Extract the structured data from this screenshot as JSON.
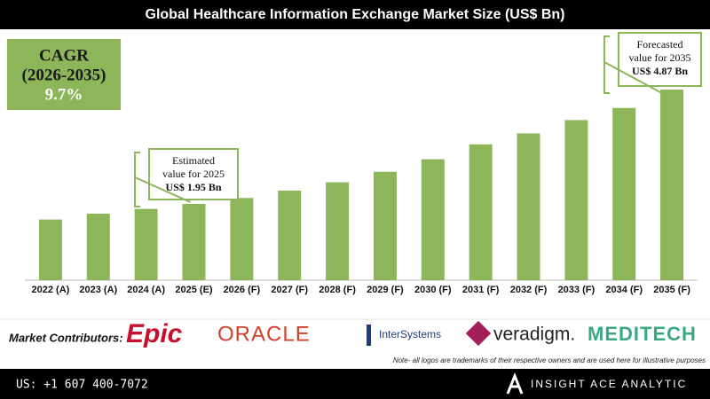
{
  "chart_data": {
    "type": "bar",
    "title": "Global Healthcare Information Exchange Market Size (US$ Bn)",
    "categories": [
      "2022 (A)",
      "2023 (A)",
      "2024 (A)",
      "2025 (E)",
      "2026 (F)",
      "2027 (F)",
      "2028 (F)",
      "2029 (F)",
      "2030 (F)",
      "2031 (F)",
      "2032 (F)",
      "2033 (F)",
      "2034 (F)",
      "2035 (F)"
    ],
    "values": [
      1.55,
      1.7,
      1.82,
      1.95,
      2.1,
      2.29,
      2.5,
      2.77,
      3.09,
      3.47,
      3.75,
      4.09,
      4.4,
      4.87
    ],
    "color": "#8db55a",
    "cagr_box": {
      "lines": [
        "CAGR",
        "(2026-2035)",
        "9.7%"
      ]
    },
    "annotations": [
      {
        "lines": [
          "Estimated",
          "value for 2025",
          "US$ 1.95 Bn"
        ]
      },
      {
        "lines": [
          "Forecasted",
          "value for 2035",
          "US$ 4.87 Bn"
        ]
      }
    ]
  },
  "footer": {
    "contributors_label": "Market Contributors:",
    "logos": [
      {
        "text": "Epic",
        "color": "#c8102e"
      },
      {
        "text": "ORACLE",
        "color": "#d0402a"
      },
      {
        "text": "InterSystems",
        "color": "#1a3d7c"
      },
      {
        "text": "veradigm.",
        "color": "#222222"
      },
      {
        "text": "MEDITECH",
        "color": "#3aa981"
      }
    ],
    "note": "Note- all logos are trademarks of their respective owners and are used here for illustrative purposes",
    "phone": "US: +1 607 400-7072",
    "brand": "INSIGHT ACE ANALYTIC"
  }
}
